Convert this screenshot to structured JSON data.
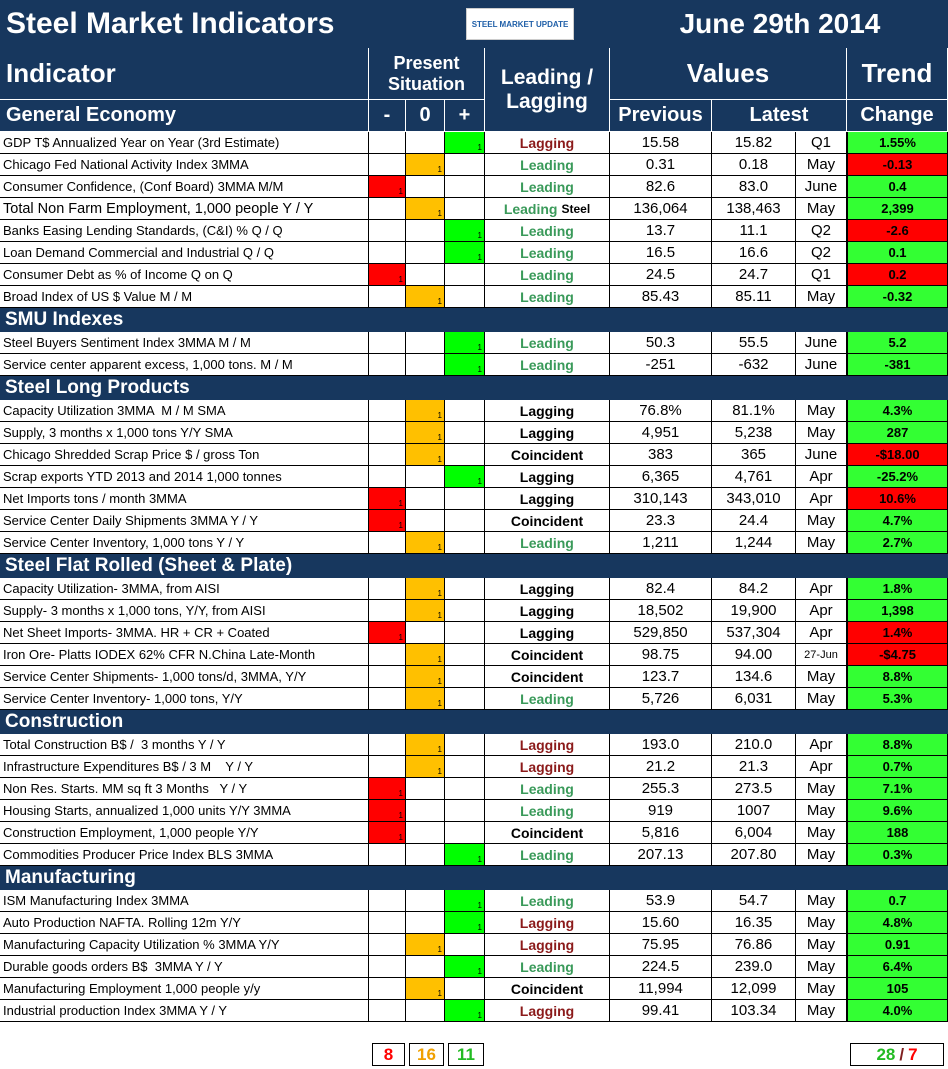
{
  "header": {
    "title": "Steel Market Indicators",
    "logo": "STEEL MARKET UPDATE",
    "date": "June 29th 2014"
  },
  "columns": {
    "indicator": "Indicator",
    "situation": "Present Situation",
    "type": "Leading / Lagging",
    "values": "Values",
    "trend": "Trend",
    "minus": "-",
    "zero": "0",
    "plus": "+",
    "previous": "Previous",
    "latest": "Latest",
    "change": "Change"
  },
  "colors": {
    "minus": "#ff0000",
    "zero": "#ffc000",
    "plus": "#00ff00"
  },
  "sections": [
    {
      "name": "General Economy",
      "rows": [
        {
          "indicator": "GDP T$ Annualized Year on Year (3rd Estimate)",
          "mark": "1",
          "situation": "plus",
          "type": "Lagging",
          "type_color": "#8b1a1a",
          "previous": "15.58",
          "latest": "15.82",
          "period": "Q1",
          "change": "1.55%",
          "change_color": "#33ff33"
        },
        {
          "indicator": "Chicago Fed National Activity Index 3MMA",
          "mark": "1",
          "situation": "zero",
          "type": "Leading",
          "type_color": "#3a9a5a",
          "previous": "0.31",
          "latest": "0.18",
          "period": "May",
          "change": "-0.13",
          "change_color": "#ff0000"
        },
        {
          "indicator": "Consumer Confidence, (Conf Board) 3MMA M/M",
          "mark": "1",
          "situation": "minus",
          "type": "Leading",
          "type_color": "#3a9a5a",
          "previous": "82.6",
          "latest": "83.0",
          "period": "June",
          "change": "0.4",
          "change_color": "#33ff33"
        },
        {
          "indicator": "Total Non Farm Employment, 1,000 people Y / Y",
          "mark": "1",
          "situation": "zero",
          "type": "Leading",
          "note": "Steel",
          "type_color": "#3a9a5a",
          "previous": "136,064",
          "latest": "138,463",
          "period": "May",
          "change": "2,399",
          "change_color": "#33ff33"
        },
        {
          "indicator": "Banks Easing Lending Standards, (C&I) % Q / Q",
          "mark": "1",
          "situation": "plus",
          "type": "Leading",
          "type_color": "#3a9a5a",
          "previous": "13.7",
          "latest": "11.1",
          "period": "Q2",
          "change": "-2.6",
          "change_color": "#ff0000"
        },
        {
          "indicator": "Loan Demand Commercial and Industrial Q / Q",
          "mark": "1",
          "situation": "plus",
          "type": "Leading",
          "type_color": "#3a9a5a",
          "previous": "16.5",
          "latest": "16.6",
          "period": "Q2",
          "change": "0.1",
          "change_color": "#33ff33"
        },
        {
          "indicator": "Consumer Debt as % of Income Q on Q",
          "mark": "1",
          "situation": "minus",
          "type": "Leading",
          "type_color": "#3a9a5a",
          "previous": "24.5",
          "latest": "24.7",
          "period": "Q1",
          "change": "0.2",
          "change_color": "#ff0000"
        },
        {
          "indicator": "Broad Index of US $ Value M / M",
          "mark": "1",
          "situation": "zero",
          "type": "Leading",
          "type_color": "#3a9a5a",
          "previous": "85.43",
          "latest": "85.11",
          "period": "May",
          "change": "-0.32",
          "change_color": "#33ff33"
        }
      ]
    },
    {
      "name": "SMU Indexes",
      "rows": [
        {
          "indicator": "Steel Buyers Sentiment Index 3MMA M / M",
          "mark": "1",
          "situation": "plus",
          "type": "Leading",
          "type_color": "#3a9a5a",
          "previous": "50.3",
          "latest": "55.5",
          "period": "June",
          "change": "5.2",
          "change_color": "#33ff33"
        },
        {
          "indicator": "Service center apparent excess, 1,000 tons. M / M",
          "mark": "1",
          "situation": "plus",
          "type": "Leading",
          "type_color": "#3a9a5a",
          "previous": "-251",
          "latest": "-632",
          "period": "June",
          "change": "-381",
          "change_color": "#33ff33"
        }
      ]
    },
    {
      "name": "Steel Long Products",
      "rows": [
        {
          "indicator": "Capacity Utilization 3MMA  M / M SMA",
          "mark": "1",
          "situation": "zero",
          "type": "Lagging",
          "type_color": "#000000",
          "previous": "76.8%",
          "latest": "81.1%",
          "period": "May",
          "change": "4.3%",
          "change_color": "#33ff33"
        },
        {
          "indicator": "Supply, 3 months x 1,000 tons Y/Y SMA",
          "mark": "1",
          "situation": "zero",
          "type": "Lagging",
          "type_color": "#000000",
          "previous": "4,951",
          "latest": "5,238",
          "period": "May",
          "change": "287",
          "change_color": "#33ff33"
        },
        {
          "indicator": "Chicago Shredded Scrap Price $ / gross Ton",
          "mark": "1",
          "situation": "zero",
          "type": "Coincident",
          "type_color": "#000000",
          "previous": "383",
          "latest": "365",
          "period": "June",
          "change": "-$18.00",
          "change_color": "#ff0000"
        },
        {
          "indicator": "Scrap exports YTD 2013 and 2014 1,000 tonnes",
          "mark": "1",
          "situation": "plus",
          "type": "Lagging",
          "type_color": "#000000",
          "previous": "6,365",
          "latest": "4,761",
          "period": "Apr",
          "change": "-25.2%",
          "change_color": "#33ff33"
        },
        {
          "indicator": "Net Imports tons / month 3MMA",
          "mark": "1",
          "situation": "minus",
          "type": "Lagging",
          "type_color": "#000000",
          "previous": "310,143",
          "latest": "343,010",
          "period": "Apr",
          "change": "10.6%",
          "change_color": "#ff0000"
        },
        {
          "indicator": "Service Center Daily Shipments 3MMA Y / Y",
          "mark": "1",
          "situation": "minus",
          "type": "Coincident",
          "type_color": "#000000",
          "previous": "23.3",
          "latest": "24.4",
          "period": "May",
          "change": "4.7%",
          "change_color": "#33ff33"
        },
        {
          "indicator": "Service Center Inventory, 1,000 tons Y / Y",
          "mark": "1",
          "situation": "zero",
          "type": "Leading",
          "type_color": "#3a9a5a",
          "previous": "1,211",
          "latest": "1,244",
          "period": "May",
          "change": "2.7%",
          "change_color": "#33ff33"
        }
      ]
    },
    {
      "name": "Steel Flat Rolled (Sheet & Plate)",
      "rows": [
        {
          "indicator": "Capacity Utilization- 3MMA, from AISI",
          "mark": "1",
          "situation": "zero",
          "type": "Lagging",
          "type_color": "#000000",
          "previous": "82.4",
          "latest": "84.2",
          "period": "Apr",
          "change": "1.8%",
          "change_color": "#33ff33"
        },
        {
          "indicator": "Supply- 3 months x 1,000 tons, Y/Y, from AISI",
          "mark": "1",
          "situation": "zero",
          "type": "Lagging",
          "type_color": "#000000",
          "previous": "18,502",
          "latest": "19,900",
          "period": "Apr",
          "change": "1,398",
          "change_color": "#33ff33"
        },
        {
          "indicator": "Net Sheet Imports- 3MMA. HR + CR + Coated",
          "mark": "1",
          "situation": "minus",
          "type": "Lagging",
          "type_color": "#000000",
          "previous": "529,850",
          "latest": "537,304",
          "period": "Apr",
          "change": "1.4%",
          "change_color": "#ff0000"
        },
        {
          "indicator": "Iron Ore- Platts IODEX 62% CFR N.China Late-Month",
          "mark": "1",
          "situation": "zero",
          "type": "Coincident",
          "type_color": "#000000",
          "previous": "98.75",
          "latest": "94.00",
          "period": "27-Jun",
          "change": "-$4.75",
          "change_color": "#ff0000"
        },
        {
          "indicator": "Service Center Shipments- 1,000 tons/d, 3MMA, Y/Y",
          "mark": "1",
          "situation": "zero",
          "type": "Coincident",
          "type_color": "#000000",
          "previous": "123.7",
          "latest": "134.6",
          "period": "May",
          "change": "8.8%",
          "change_color": "#33ff33"
        },
        {
          "indicator": "Service Center Inventory- 1,000 tons, Y/Y",
          "mark": "1",
          "situation": "zero",
          "type": "Leading",
          "type_color": "#3a9a5a",
          "previous": "5,726",
          "latest": "6,031",
          "period": "May",
          "change": "5.3%",
          "change_color": "#33ff33"
        }
      ]
    },
    {
      "name": "Construction",
      "rows": [
        {
          "indicator": "Total Construction B$ /  3 months Y / Y",
          "mark": "1",
          "situation": "zero",
          "type": "Lagging",
          "type_color": "#8b1a1a",
          "previous": "193.0",
          "latest": "210.0",
          "period": "Apr",
          "change": "8.8%",
          "change_color": "#33ff33"
        },
        {
          "indicator": "Infrastructure Expenditures B$ / 3 M    Y / Y",
          "mark": "1",
          "situation": "zero",
          "type": "Lagging",
          "type_color": "#8b1a1a",
          "previous": "21.2",
          "latest": "21.3",
          "period": "Apr",
          "change": "0.7%",
          "change_color": "#33ff33"
        },
        {
          "indicator": "Non Res. Starts. MM sq ft 3 Months   Y / Y",
          "mark": "1",
          "situation": "minus",
          "type": "Leading",
          "type_color": "#3a9a5a",
          "previous": "255.3",
          "latest": "273.5",
          "period": "May",
          "change": "7.1%",
          "change_color": "#33ff33"
        },
        {
          "indicator": "Housing Starts, annualized 1,000 units Y/Y 3MMA",
          "mark": "1",
          "situation": "minus",
          "type": "Leading",
          "type_color": "#3a9a5a",
          "previous": "919",
          "latest": "1007",
          "period": "May",
          "change": "9.6%",
          "change_color": "#33ff33"
        },
        {
          "indicator": "Construction Employment, 1,000 people Y/Y",
          "mark": "1",
          "situation": "minus",
          "type": "Coincident",
          "type_color": "#000000",
          "previous": "5,816",
          "latest": "6,004",
          "period": "May",
          "change": "188",
          "change_color": "#33ff33"
        },
        {
          "indicator": "Commodities Producer Price Index BLS 3MMA",
          "mark": "1",
          "situation": "plus",
          "type": "Leading",
          "type_color": "#3a9a5a",
          "previous": "207.13",
          "latest": "207.80",
          "period": "May",
          "change": "0.3%",
          "change_color": "#33ff33"
        }
      ]
    },
    {
      "name": "Manufacturing",
      "rows": [
        {
          "indicator": "ISM Manufacturing Index 3MMA",
          "mark": "1",
          "situation": "plus",
          "type": "Leading",
          "type_color": "#3a9a5a",
          "previous": "53.9",
          "latest": "54.7",
          "period": "May",
          "change": "0.7",
          "change_color": "#33ff33"
        },
        {
          "indicator": "Auto Production NAFTA. Rolling 12m Y/Y",
          "mark": "1",
          "situation": "plus",
          "type": "Lagging",
          "type_color": "#8b1a1a",
          "previous": "15.60",
          "latest": "16.35",
          "period": "May",
          "change": "4.8%",
          "change_color": "#33ff33"
        },
        {
          "indicator": "Manufacturing Capacity Utilization % 3MMA Y/Y",
          "mark": "1",
          "situation": "zero",
          "type": "Lagging",
          "type_color": "#8b1a1a",
          "previous": "75.95",
          "latest": "76.86",
          "period": "May",
          "change": "0.91",
          "change_color": "#33ff33"
        },
        {
          "indicator": "Durable goods orders B$  3MMA Y / Y",
          "mark": "1",
          "situation": "plus",
          "type": "Leading",
          "type_color": "#3a9a5a",
          "previous": "224.5",
          "latest": "239.0",
          "period": "May",
          "change": "6.4%",
          "change_color": "#33ff33"
        },
        {
          "indicator": "Manufacturing Employment 1,000 people y/y",
          "mark": "1",
          "situation": "zero",
          "type": "Coincident",
          "type_color": "#000000",
          "previous": "11,994",
          "latest": "12,099",
          "period": "May",
          "change": "105",
          "change_color": "#33ff33"
        },
        {
          "indicator": "Industrial production Index 3MMA Y / Y",
          "mark": "1",
          "situation": "plus",
          "type": "Lagging",
          "type_color": "#8b1a1a",
          "previous": "99.41",
          "latest": "103.34",
          "period": "May",
          "change": "4.0%",
          "change_color": "#33ff33"
        }
      ]
    }
  ],
  "footer": {
    "counts": [
      8,
      16,
      11
    ],
    "trend": {
      "up": 28,
      "separator": "/",
      "down": 7
    }
  }
}
